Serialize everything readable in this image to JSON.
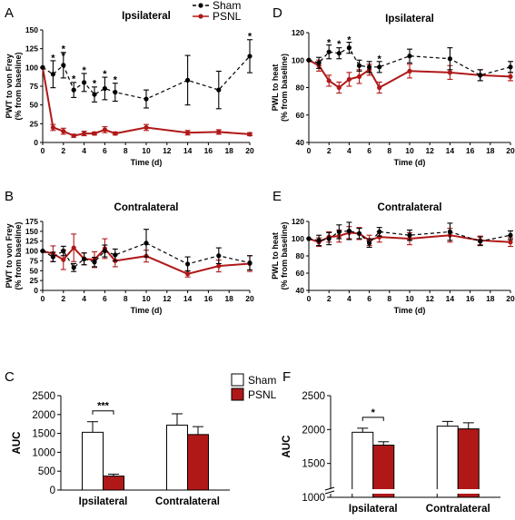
{
  "colors": {
    "sham": "#000000",
    "psnl": "#b01818",
    "sham_bar": "#ffffff",
    "psnl_bar": "#b01818"
  },
  "legend": {
    "sham": "Sham",
    "psnl": "PSNL"
  },
  "chart_data": [
    {
      "id": "A",
      "panel_label": "A",
      "type": "line",
      "title": "Ipsilateral",
      "xlabel": "Time (d)",
      "ylabel": [
        "PWT to von Frey",
        "(% from baseline)"
      ],
      "xlim": [
        0,
        20
      ],
      "ylim": [
        0,
        150
      ],
      "xticks": [
        0,
        2,
        4,
        6,
        8,
        10,
        12,
        14,
        16,
        18,
        20
      ],
      "yticks": [
        0,
        25,
        50,
        75,
        100,
        125,
        150
      ],
      "grid": false,
      "series": [
        {
          "name": "Sham",
          "style": "dashed",
          "x": [
            0,
            1,
            2,
            3,
            4,
            5,
            6,
            7,
            10,
            14,
            17,
            20
          ],
          "y": [
            100,
            91,
            103,
            70,
            80,
            64,
            72,
            67,
            58,
            83,
            70,
            115
          ],
          "err": [
            0,
            18,
            17,
            10,
            12,
            10,
            15,
            12,
            12,
            33,
            25,
            22
          ]
        },
        {
          "name": "PSNL",
          "style": "solid",
          "x": [
            0,
            1,
            2,
            3,
            4,
            5,
            6,
            7,
            10,
            14,
            17,
            20
          ],
          "y": [
            100,
            20,
            15,
            9,
            12,
            12,
            17,
            12,
            20,
            13,
            14,
            11
          ],
          "err": [
            0,
            4,
            4,
            2,
            3,
            2,
            4,
            2,
            4,
            3,
            3,
            2
          ]
        }
      ],
      "annotations": [
        {
          "x": 1,
          "y": 113,
          "text": "*"
        },
        {
          "x": 2,
          "y": 125,
          "text": "*"
        },
        {
          "x": 2,
          "y": 116,
          "text": "*"
        },
        {
          "x": 3,
          "y": 85,
          "text": "*"
        },
        {
          "x": 4,
          "y": 97,
          "text": "*"
        },
        {
          "x": 5,
          "y": 79,
          "text": "*"
        },
        {
          "x": 6,
          "y": 92,
          "text": "*"
        },
        {
          "x": 7,
          "y": 84,
          "text": "*"
        },
        {
          "x": 20,
          "y": 142,
          "text": "*"
        }
      ]
    },
    {
      "id": "D",
      "panel_label": "D",
      "type": "line",
      "title": "Ipsilateral",
      "xlabel": "Time (d)",
      "ylabel": [
        "PWL to heat",
        "(% from baseline)"
      ],
      "xlim": [
        0,
        20
      ],
      "ylim": [
        40,
        120
      ],
      "xticks": [
        0,
        2,
        4,
        6,
        8,
        10,
        12,
        14,
        16,
        18,
        20
      ],
      "yticks": [
        40,
        60,
        80,
        100,
        120
      ],
      "grid": false,
      "series": [
        {
          "name": "Sham",
          "style": "dashed",
          "x": [
            0,
            1,
            2,
            3,
            4,
            5,
            6,
            7,
            10,
            14,
            17,
            20
          ],
          "y": [
            100,
            98,
            106,
            105,
            109,
            96,
            95,
            95,
            103,
            101,
            89,
            95
          ],
          "err": [
            0,
            4,
            5,
            4,
            4,
            4,
            4,
            4,
            5,
            8,
            4,
            4
          ]
        },
        {
          "name": "PSNL",
          "style": "solid",
          "x": [
            0,
            1,
            2,
            3,
            4,
            5,
            6,
            7,
            10,
            14,
            17,
            20
          ],
          "y": [
            100,
            96,
            85,
            80,
            86,
            88,
            93,
            80,
            92,
            91,
            89,
            88
          ],
          "err": [
            0,
            4,
            4,
            4,
            5,
            5,
            4,
            4,
            5,
            5,
            4,
            3
          ]
        }
      ],
      "annotations": [
        {
          "x": 2,
          "y": 113,
          "text": "*"
        },
        {
          "x": 3,
          "y": 112,
          "text": "*"
        },
        {
          "x": 4,
          "y": 115,
          "text": "*"
        },
        {
          "x": 7,
          "y": 101,
          "text": "*"
        }
      ]
    },
    {
      "id": "B",
      "panel_label": "B",
      "type": "line",
      "title": "Contralateral",
      "xlabel": "Time (d)",
      "ylabel": [
        "PWT to von Frey",
        "(% from baseline)"
      ],
      "xlim": [
        0,
        20
      ],
      "ylim": [
        0,
        175
      ],
      "xticks": [
        0,
        2,
        4,
        6,
        8,
        10,
        12,
        14,
        16,
        18,
        20
      ],
      "yticks": [
        0,
        25,
        50,
        75,
        100,
        125,
        150,
        175
      ],
      "grid": false,
      "series": [
        {
          "name": "Sham",
          "style": "dashed",
          "x": [
            0,
            1,
            2,
            3,
            4,
            5,
            6,
            7,
            10,
            14,
            17,
            20
          ],
          "y": [
            100,
            85,
            100,
            58,
            80,
            72,
            100,
            90,
            120,
            67,
            88,
            70
          ],
          "err": [
            0,
            12,
            12,
            10,
            15,
            12,
            15,
            15,
            35,
            18,
            20,
            18
          ]
        },
        {
          "name": "PSNL",
          "style": "solid",
          "x": [
            0,
            1,
            2,
            3,
            4,
            5,
            6,
            7,
            10,
            14,
            17,
            20
          ],
          "y": [
            100,
            93,
            78,
            108,
            80,
            78,
            106,
            75,
            87,
            42,
            62,
            68
          ],
          "err": [
            0,
            20,
            25,
            35,
            15,
            20,
            25,
            15,
            15,
            8,
            15,
            20
          ]
        }
      ],
      "annotations": []
    },
    {
      "id": "E",
      "panel_label": "E",
      "type": "line",
      "title": "Contralateral",
      "xlabel": "Time (d)",
      "ylabel": [
        "PWL to heat",
        "(% from baseline)"
      ],
      "xlim": [
        0,
        20
      ],
      "ylim": [
        40,
        120
      ],
      "xticks": [
        0,
        2,
        4,
        6,
        8,
        10,
        12,
        14,
        16,
        18,
        20
      ],
      "yticks": [
        40,
        60,
        80,
        100,
        120
      ],
      "grid": false,
      "series": [
        {
          "name": "Sham",
          "style": "dashed",
          "x": [
            0,
            1,
            2,
            3,
            4,
            5,
            6,
            7,
            10,
            14,
            17,
            20
          ],
          "y": [
            100,
            98,
            100,
            108,
            109,
            106,
            95,
            108,
            104,
            108,
            97,
            104
          ],
          "err": [
            0,
            6,
            7,
            8,
            10,
            6,
            5,
            5,
            6,
            10,
            5,
            5
          ]
        },
        {
          "name": "PSNL",
          "style": "solid",
          "x": [
            0,
            1,
            2,
            3,
            4,
            5,
            6,
            7,
            10,
            14,
            17,
            20
          ],
          "y": [
            100,
            96,
            102,
            103,
            107,
            106,
            98,
            102,
            100,
            104,
            98,
            96
          ],
          "err": [
            0,
            5,
            6,
            7,
            7,
            7,
            6,
            6,
            7,
            8,
            5,
            5
          ]
        }
      ],
      "annotations": []
    },
    {
      "id": "C",
      "panel_label": "C",
      "type": "bar",
      "title": "",
      "xlabel": "",
      "ylabel": "AUC",
      "categories": [
        "Ipsilateral",
        "Contralateral"
      ],
      "ylim": [
        0,
        2500
      ],
      "yticks": [
        0,
        500,
        1000,
        1500,
        2000,
        2500
      ],
      "series": [
        {
          "name": "Sham",
          "values": [
            1530,
            1720
          ],
          "err": [
            280,
            300
          ]
        },
        {
          "name": "PSNL",
          "values": [
            370,
            1470
          ],
          "err": [
            50,
            210
          ]
        }
      ],
      "significance": {
        "text": "***",
        "category": 0
      }
    },
    {
      "id": "F",
      "panel_label": "F",
      "type": "bar",
      "title": "",
      "xlabel": "",
      "ylabel": "AUC",
      "categories": [
        "Ipsilateral",
        "Contralateral"
      ],
      "ylim": [
        1000,
        2500
      ],
      "yticks": [
        1000,
        1500,
        2000,
        2500
      ],
      "axis_break": true,
      "series": [
        {
          "name": "Sham",
          "values": [
            1960,
            2050
          ],
          "err": [
            60,
            70
          ]
        },
        {
          "name": "PSNL",
          "values": [
            1770,
            2010
          ],
          "err": [
            50,
            90
          ]
        }
      ],
      "significance": {
        "text": "*",
        "category": 0
      }
    }
  ]
}
